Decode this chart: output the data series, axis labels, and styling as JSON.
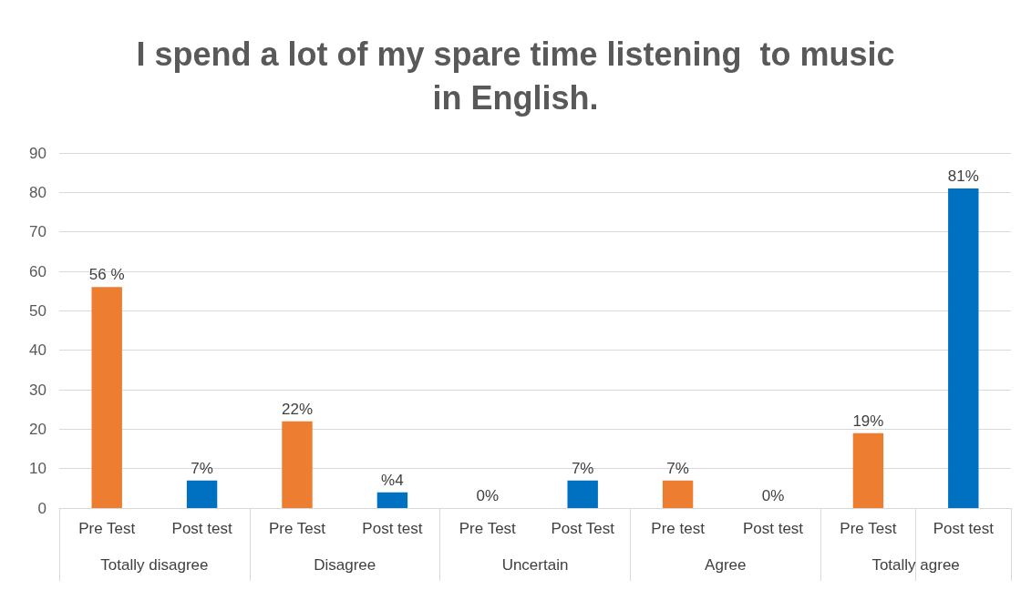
{
  "chart_data": {
    "type": "bar",
    "title": "I spend a lot of my spare time listening  to music\nin English.",
    "categories": [
      "Pre Test",
      "Post test",
      "Pre Test",
      "Post test",
      "Pre Test",
      "Post Test",
      "Pre test",
      "Post test",
      "Pre Test",
      "Post test"
    ],
    "values": [
      56,
      7,
      22,
      4,
      0,
      7,
      7,
      0,
      19,
      81
    ],
    "colors": [
      "#ed7d31",
      "#0070c0",
      "#ed7d31",
      "#0070c0",
      "#ed7d31",
      "#0070c0",
      "#ed7d31",
      "#0070c0",
      "#ed7d31",
      "#0070c0"
    ],
    "value_labels": [
      "56 %",
      "7%",
      "22%",
      "%4",
      "0%",
      "7%",
      "7%",
      "0%",
      "19%",
      "81%"
    ],
    "annotations": [
      "Totally disagree",
      "Disagree",
      "Uncertain",
      "Agree",
      "Totally agree"
    ],
    "ylim": [
      0,
      90
    ],
    "yticks": [
      0,
      10,
      20,
      30,
      40,
      50,
      60,
      70,
      80,
      90
    ],
    "grid": "y"
  }
}
